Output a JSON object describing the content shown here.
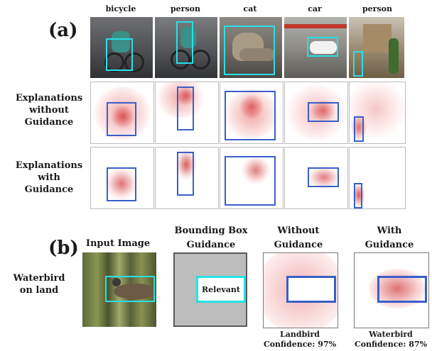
{
  "panel_a": {
    "label": "(a)",
    "columns": [
      "bicycle",
      "person",
      "cat",
      "car",
      "person"
    ],
    "rows": [
      {
        "label_line1": "Explanations",
        "label_line2": "without",
        "label_line3": "Guidance"
      },
      {
        "label_line1": "Explanations",
        "label_line2": "with",
        "label_line3": "Guidance"
      }
    ]
  },
  "panel_b": {
    "label": "(b)",
    "row_label_line1": "Waterbird",
    "row_label_line2": "on land",
    "headers": [
      {
        "line1": "Input Image",
        "line2": ""
      },
      {
        "line1": "Bounding Box",
        "line2": "Guidance"
      },
      {
        "line1": "Without",
        "line2": "Guidance"
      },
      {
        "line1": "With",
        "line2": "Guidance"
      }
    ],
    "relevant_label": "Relevant",
    "footers": [
      {
        "line1": "Landbird",
        "line2": "Confidence: 97%"
      },
      {
        "line1": "Waterbird",
        "line2": "Confidence: 87%"
      }
    ]
  },
  "colors": {
    "guidance_box_cyan": "#27e0e6",
    "explanation_box_blue": "#3b5fc9",
    "heatmap_red": "#e02020",
    "bbox_background_gray": "#bdbdbd"
  }
}
